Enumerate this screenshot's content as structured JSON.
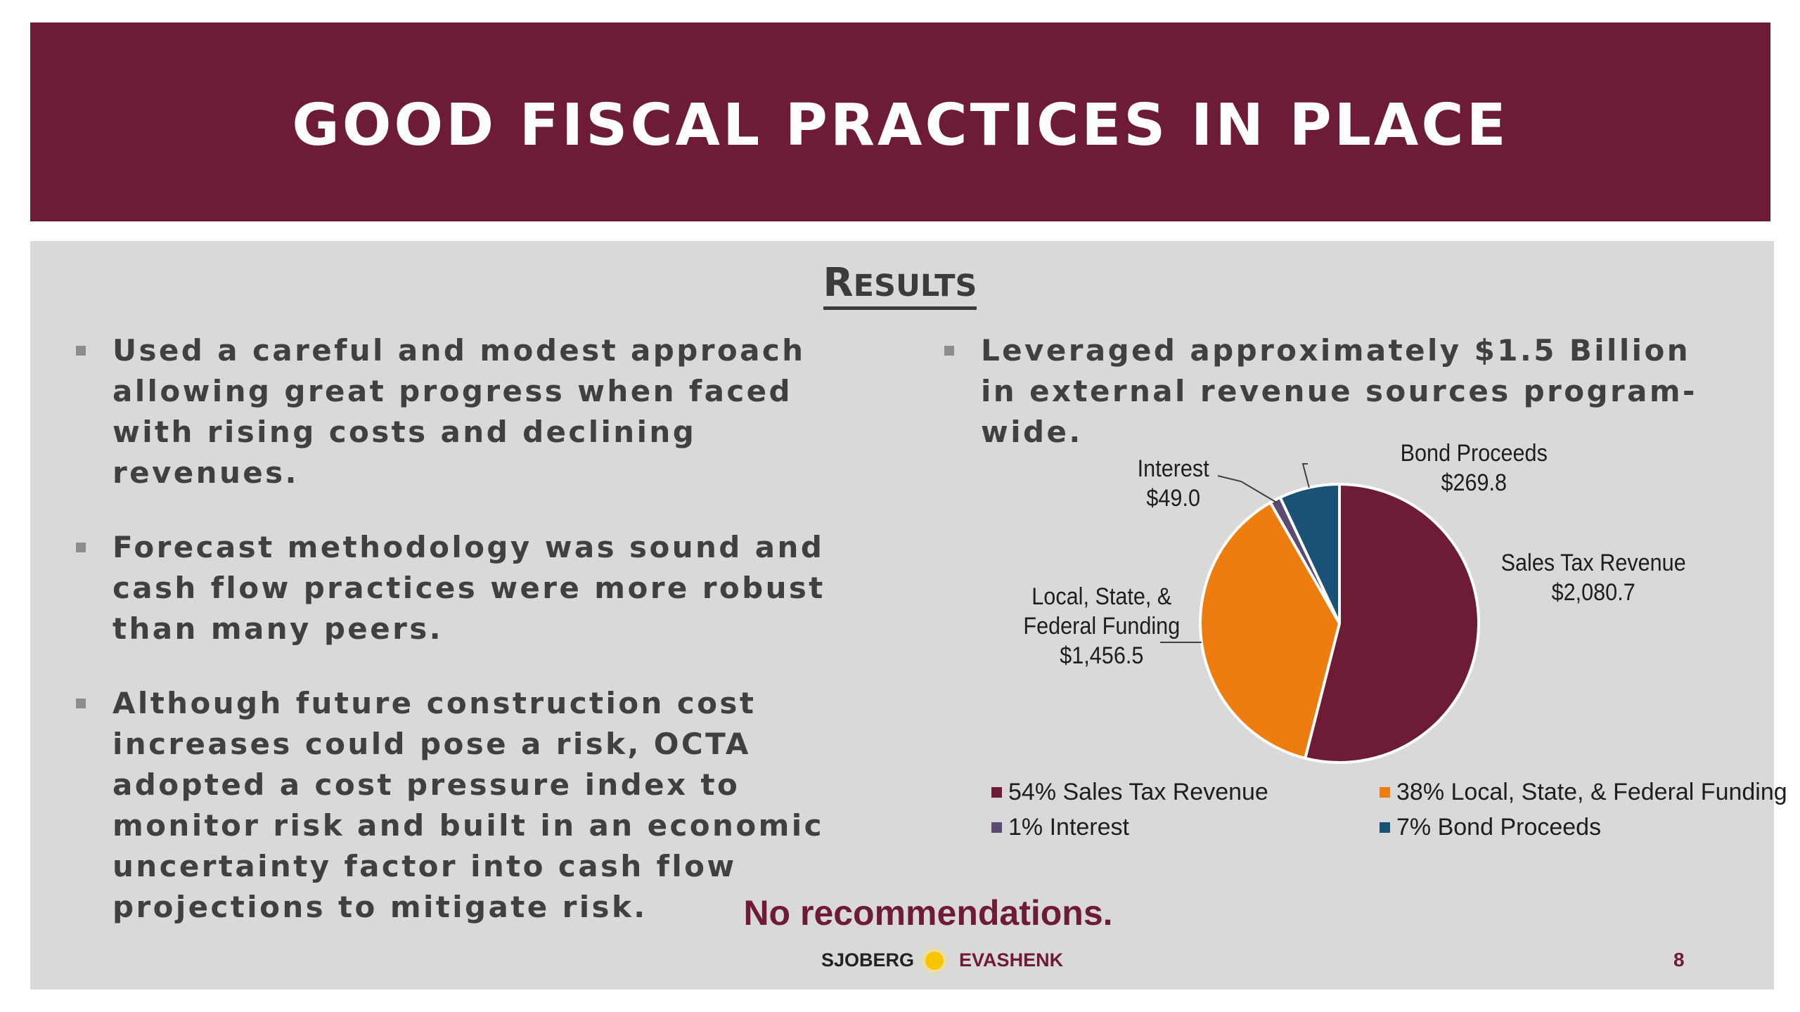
{
  "slide": {
    "title": "GOOD FISCAL PRACTICES IN PLACE",
    "section_heading_initial": "R",
    "section_heading_rest": "ESULTS",
    "left_bullets": [
      "Used a careful and modest approach allowing great progress when faced with rising costs and declining revenues.",
      "Forecast methodology was sound and cash flow practices were more robust than many peers.",
      "Although future construction cost increases could pose a risk, OCTA adopted a cost pressure index to monitor risk and built in an economic uncertainty factor into cash flow projections to mitigate risk."
    ],
    "right_bullets": [
      "Leveraged approximately $1.5 Billion in external revenue sources program-wide."
    ],
    "conclusion": "No recommendations.",
    "footer": {
      "logo_left": "SJOBERG",
      "logo_right": "EVASHENK",
      "page_number": "8"
    }
  },
  "colors": {
    "title_bar": "#6e1b35",
    "panel": "#d9d9d9",
    "sales_tax": "#6e1b35",
    "local_state_federal": "#ed7d0e",
    "interest": "#5b4a72",
    "bond": "#1a5276"
  },
  "chart_data": {
    "type": "pie",
    "slices": [
      {
        "name": "Sales Tax Revenue",
        "value": 2080.7,
        "value_label": "$2,080.7",
        "percent_label": "54%",
        "label_lines": [
          "Sales Tax Revenue",
          "$2,080.7"
        ],
        "legend": "54% Sales Tax Revenue",
        "color": "#6e1b35"
      },
      {
        "name": "Local, State, & Federal Funding",
        "value": 1456.5,
        "value_label": "$1,456.5",
        "percent_label": "38%",
        "label_lines": [
          "Local, State, &",
          "Federal Funding",
          "$1,456.5"
        ],
        "legend": "38% Local, State, & Federal Funding",
        "color": "#ed7d0e"
      },
      {
        "name": "Interest",
        "value": 49.0,
        "value_label": "$49.0",
        "percent_label": "1%",
        "label_lines": [
          "Interest",
          "$49.0"
        ],
        "legend": "1% Interest",
        "color": "#5b4a72"
      },
      {
        "name": "Bond Proceeds",
        "value": 269.8,
        "value_label": "$269.8",
        "percent_label": "7%",
        "label_lines": [
          "Bond Proceeds",
          "$269.8"
        ],
        "legend": "7% Bond Proceeds",
        "color": "#1a5276"
      }
    ],
    "legend_placement": "bottom"
  }
}
